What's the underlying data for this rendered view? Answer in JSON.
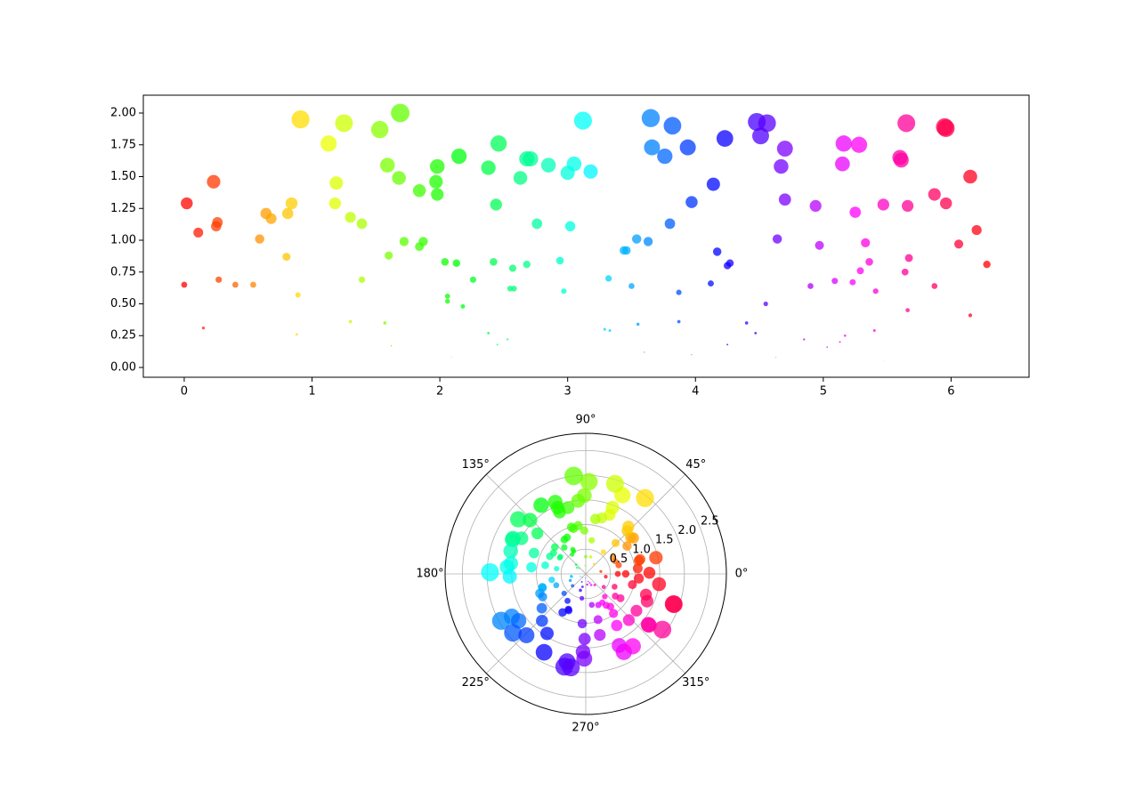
{
  "chart_data": [
    {
      "type": "scatter",
      "colormap": "hsv",
      "opacity": 0.75,
      "xlim": [
        -0.32,
        6.61
      ],
      "ylim": [
        -0.077,
        2.14
      ],
      "xticks": [
        0,
        1,
        2,
        3,
        4,
        5,
        6
      ],
      "yticks": [
        {
          "value": 0,
          "label": "0.00"
        },
        {
          "value": 0.25,
          "label": "0.25"
        },
        {
          "value": 0.5,
          "label": "0.50"
        },
        {
          "value": 0.75,
          "label": "0.75"
        },
        {
          "value": 1,
          "label": "1.00"
        },
        {
          "value": 1.25,
          "label": "1.25"
        },
        {
          "value": 1.5,
          "label": "1.50"
        },
        {
          "value": 1.75,
          "label": "1.75"
        },
        {
          "value": 2,
          "label": "2.00"
        }
      ],
      "x": [
        0.0,
        0.02,
        0.11,
        0.15,
        0.23,
        0.26,
        0.25,
        0.27,
        0.4,
        0.54,
        0.59,
        0.64,
        0.68,
        0.8,
        0.81,
        0.84,
        0.88,
        0.89,
        0.91,
        1.13,
        1.19,
        1.18,
        1.25,
        1.3,
        1.3,
        1.39,
        1.39,
        1.53,
        1.57,
        1.59,
        1.6,
        1.62,
        1.68,
        1.69,
        1.72,
        1.84,
        1.84,
        1.87,
        1.97,
        1.98,
        1.98,
        2.04,
        2.06,
        2.06,
        2.09,
        2.13,
        2.15,
        2.18,
        2.26,
        2.38,
        2.38,
        2.42,
        2.44,
        2.45,
        2.46,
        2.53,
        2.55,
        2.57,
        2.58,
        2.63,
        2.68,
        2.68,
        2.71,
        2.76,
        2.85,
        2.94,
        2.97,
        3.0,
        3.02,
        3.05,
        3.12,
        3.18,
        3.29,
        3.29,
        3.32,
        3.33,
        3.44,
        3.46,
        3.5,
        3.54,
        3.55,
        3.6,
        3.63,
        3.65,
        3.66,
        3.76,
        3.8,
        3.82,
        3.87,
        3.87,
        3.94,
        3.97,
        3.97,
        4.12,
        4.14,
        4.17,
        4.23,
        4.25,
        4.25,
        4.27,
        4.4,
        4.47,
        4.48,
        4.51,
        4.55,
        4.56,
        4.63,
        4.64,
        4.67,
        4.7,
        4.7,
        4.85,
        4.9,
        4.94,
        4.97,
        5.03,
        5.09,
        5.13,
        5.15,
        5.16,
        5.17,
        5.23,
        5.25,
        5.28,
        5.29,
        5.33,
        5.36,
        5.4,
        5.41,
        5.47,
        5.48,
        5.6,
        5.61,
        5.64,
        5.65,
        5.66,
        5.66,
        5.67,
        5.87,
        5.87,
        5.95,
        5.96,
        5.96,
        6.06,
        6.15,
        6.15,
        6.2,
        6.28
      ],
      "y": [
        0.65,
        1.29,
        1.06,
        0.31,
        1.46,
        1.14,
        1.11,
        0.69,
        0.65,
        0.65,
        1.01,
        1.21,
        1.17,
        0.87,
        1.21,
        1.29,
        0.26,
        0.57,
        1.95,
        1.76,
        1.45,
        1.29,
        1.92,
        1.18,
        0.36,
        1.13,
        0.69,
        1.87,
        0.35,
        1.59,
        0.88,
        0.17,
        1.49,
        2.0,
        0.99,
        1.39,
        0.95,
        0.99,
        1.46,
        1.58,
        1.36,
        0.83,
        0.56,
        0.52,
        0.08,
        0.82,
        1.66,
        0.48,
        0.69,
        0.27,
        1.57,
        0.83,
        1.28,
        0.18,
        1.76,
        0.22,
        0.62,
        0.78,
        0.62,
        1.49,
        0.81,
        1.64,
        1.64,
        1.13,
        1.59,
        0.84,
        0.6,
        1.53,
        1.11,
        1.6,
        1.94,
        1.54,
        0.04,
        0.3,
        0.7,
        0.29,
        0.92,
        0.92,
        0.64,
        1.01,
        0.34,
        0.12,
        0.99,
        1.96,
        1.73,
        1.66,
        1.13,
        1.9,
        0.59,
        0.36,
        1.73,
        1.3,
        0.1,
        0.66,
        1.44,
        0.91,
        1.8,
        0.18,
        0.8,
        0.82,
        0.35,
        0.27,
        1.93,
        1.82,
        0.5,
        1.92,
        0.08,
        1.01,
        1.58,
        1.72,
        1.32,
        0.22,
        0.64,
        1.27,
        0.96,
        0.16,
        0.68,
        0.2,
        1.6,
        1.76,
        0.25,
        0.67,
        1.22,
        1.75,
        0.76,
        0.98,
        0.83,
        0.29,
        0.6,
        1.28,
        0.05,
        1.65,
        1.63,
        0.75,
        1.92,
        0.45,
        1.27,
        0.86,
        0.64,
        1.36,
        1.89,
        1.88,
        1.29,
        0.97,
        1.5,
        0.41,
        1.08,
        0.81
      ]
    },
    {
      "type": "polar",
      "colormap": "hsv",
      "opacity": 0.75,
      "grid": true,
      "xlim": [
        0,
        360
      ],
      "ylim": [
        0,
        2.85
      ],
      "xticks": [
        {
          "value": 0,
          "label": "0°"
        },
        {
          "value": 45,
          "label": "45°"
        },
        {
          "value": 90,
          "label": "90°"
        },
        {
          "value": 135,
          "label": "135°"
        },
        {
          "value": 180,
          "label": "180°"
        },
        {
          "value": 225,
          "label": "225°"
        },
        {
          "value": 270,
          "label": "270°"
        },
        {
          "value": 315,
          "label": "315°"
        }
      ],
      "yticks": [
        0.5,
        {
          "value": 1,
          "label": "1.0"
        },
        1.5,
        {
          "value": 2,
          "label": "2.0"
        },
        2.5
      ],
      "theta": [
        0,
        1,
        6,
        9,
        13,
        15,
        14,
        15,
        23,
        31,
        34,
        37,
        39,
        46,
        46,
        48,
        50,
        51,
        52,
        65,
        68,
        68,
        72,
        74,
        74,
        80,
        80,
        88,
        90,
        91,
        92,
        93,
        96,
        97,
        99,
        105,
        105,
        107,
        113,
        113,
        113,
        117,
        118,
        118,
        120,
        122,
        123,
        125,
        129,
        136,
        136,
        139,
        140,
        140,
        141,
        145,
        146,
        147,
        148,
        151,
        154,
        154,
        155,
        158,
        163,
        168,
        170,
        172,
        173,
        175,
        179,
        182,
        189,
        189,
        190,
        191,
        197,
        198,
        201,
        203,
        203,
        206,
        208,
        209,
        210,
        215,
        218,
        219,
        222,
        222,
        226,
        227,
        227,
        236,
        237,
        239,
        242,
        244,
        244,
        245,
        252,
        256,
        257,
        258,
        261,
        261,
        265,
        266,
        268,
        269,
        269,
        278,
        281,
        283,
        285,
        288,
        292,
        294,
        295,
        296,
        296,
        300,
        301,
        303,
        303,
        305,
        307,
        309,
        310,
        313,
        314,
        321,
        321,
        323,
        324,
        324,
        324,
        325,
        336,
        336,
        341,
        341,
        341,
        347,
        352,
        352,
        355,
        360
      ],
      "r": [
        0.65,
        1.29,
        1.06,
        0.31,
        1.46,
        1.14,
        1.11,
        0.69,
        0.65,
        0.65,
        1.01,
        1.21,
        1.17,
        0.87,
        1.21,
        1.29,
        0.26,
        0.57,
        1.95,
        1.76,
        1.45,
        1.29,
        1.92,
        1.18,
        0.36,
        1.13,
        0.69,
        1.87,
        0.35,
        1.59,
        0.88,
        0.17,
        1.49,
        2.0,
        0.99,
        1.39,
        0.95,
        0.99,
        1.46,
        1.58,
        1.36,
        0.83,
        0.56,
        0.52,
        0.08,
        0.82,
        1.66,
        0.48,
        0.69,
        0.27,
        1.57,
        0.83,
        1.28,
        0.18,
        1.76,
        0.22,
        0.62,
        0.78,
        0.62,
        1.49,
        0.81,
        1.64,
        1.64,
        1.13,
        1.59,
        0.84,
        0.6,
        1.53,
        1.11,
        1.6,
        1.94,
        1.54,
        0.04,
        0.3,
        0.7,
        0.29,
        0.92,
        0.92,
        0.64,
        1.01,
        0.34,
        0.12,
        0.99,
        1.96,
        1.73,
        1.66,
        1.13,
        1.9,
        0.59,
        0.36,
        1.73,
        1.3,
        0.1,
        0.66,
        1.44,
        0.91,
        1.8,
        0.18,
        0.8,
        0.82,
        0.35,
        0.27,
        1.93,
        1.82,
        0.5,
        1.92,
        0.08,
        1.01,
        1.58,
        1.72,
        1.32,
        0.22,
        0.64,
        1.27,
        0.96,
        0.16,
        0.68,
        0.2,
        1.6,
        1.76,
        0.25,
        0.67,
        1.22,
        1.75,
        0.76,
        0.98,
        0.83,
        0.29,
        0.6,
        1.28,
        0.05,
        1.65,
        1.63,
        0.75,
        1.92,
        0.45,
        1.27,
        0.86,
        0.64,
        1.36,
        1.89,
        1.88,
        1.29,
        0.97,
        1.5,
        0.41,
        1.08,
        0.81
      ]
    }
  ]
}
